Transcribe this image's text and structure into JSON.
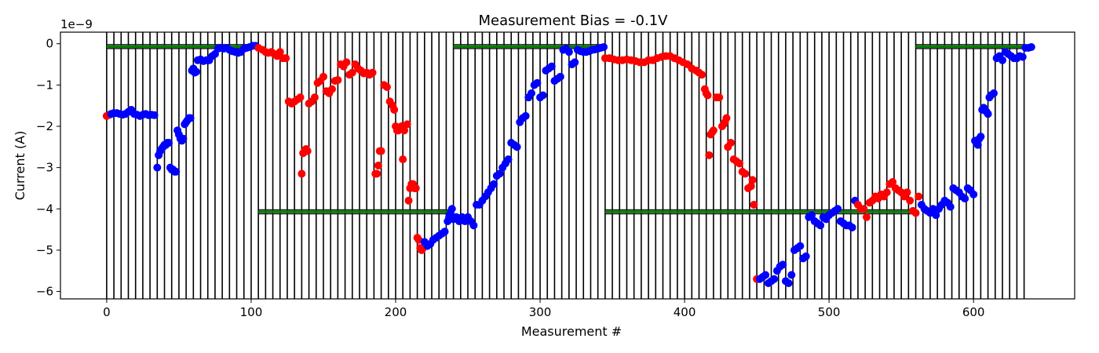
{
  "chart_data": {
    "type": "scatter",
    "title": "Measurement Bias = -0.1V",
    "xlabel": "Measurement #",
    "ylabel": "Current (A)",
    "offset_text": "1e−9",
    "xlim": [
      -32,
      670
    ],
    "ylim": [
      -6.18,
      0.28
    ],
    "xticks": [
      0,
      100,
      200,
      300,
      400,
      500,
      600
    ],
    "xtick_labels": [
      "0",
      "100",
      "200",
      "300",
      "400",
      "500",
      "600"
    ],
    "yticks": [
      0,
      -1,
      -2,
      -3,
      -4,
      -5,
      -6
    ],
    "ytick_labels": [
      "0",
      "−1",
      "−2",
      "−3",
      "−4",
      "−5",
      "−6"
    ],
    "grid": false,
    "colors": {
      "blue": "#0000ff",
      "red": "#ff0000",
      "vline": "#000000",
      "hline_green": "#008000",
      "hline_dark": "#1a1a1a"
    },
    "vlines": {
      "start": 0,
      "end": 635,
      "step": 5
    },
    "hbands": [
      {
        "x": [
          0,
          105
        ],
        "y": -0.07
      },
      {
        "x": [
          240,
          345
        ],
        "y": -0.07
      },
      {
        "x": [
          560,
          635
        ],
        "y": -0.07
      },
      {
        "x": [
          105,
          240
        ],
        "y": -4.07
      },
      {
        "x": [
          345,
          560
        ],
        "y": -4.07
      }
    ],
    "series": [
      {
        "color": "red",
        "x": [
          0,
          2
        ],
        "y": [
          -1.75,
          -1.72
        ]
      },
      {
        "color": "blue",
        "x": [
          3,
          5,
          7,
          9,
          11,
          13,
          15,
          17,
          19,
          21,
          23,
          25,
          27,
          29,
          31,
          33,
          35,
          36,
          37,
          38,
          39,
          40,
          41,
          42,
          43,
          44,
          45,
          46,
          47,
          48,
          49,
          50,
          51,
          52,
          53,
          54,
          55,
          56,
          57,
          58,
          59,
          60,
          61,
          62,
          63,
          65,
          67,
          69,
          71,
          73,
          75,
          77,
          79,
          81,
          83,
          85,
          87,
          89,
          91,
          93,
          95,
          97,
          99,
          101,
          103
        ],
        "y": [
          -1.7,
          -1.68,
          -1.68,
          -1.7,
          -1.72,
          -1.7,
          -1.65,
          -1.6,
          -1.7,
          -1.72,
          -1.75,
          -1.72,
          -1.7,
          -1.73,
          -1.72,
          -1.73,
          -3.0,
          -2.7,
          -2.6,
          -2.55,
          -2.5,
          -2.45,
          -2.45,
          -2.4,
          -2.4,
          -3.0,
          -3.05,
          -3.05,
          -3.1,
          -3.1,
          -2.1,
          -2.2,
          -2.3,
          -2.35,
          -2.3,
          -1.95,
          -1.9,
          -1.85,
          -1.8,
          -1.8,
          -0.65,
          -0.6,
          -0.7,
          -0.68,
          -0.4,
          -0.38,
          -0.42,
          -0.4,
          -0.4,
          -0.3,
          -0.25,
          -0.12,
          -0.1,
          -0.12,
          -0.1,
          -0.15,
          -0.18,
          -0.2,
          -0.22,
          -0.2,
          -0.12,
          -0.1,
          -0.08,
          -0.05,
          -0.05
        ]
      },
      {
        "color": "red",
        "x": [
          105,
          108,
          110,
          112,
          114,
          116,
          118,
          120,
          122,
          124,
          126,
          128,
          130,
          132,
          134,
          135,
          136,
          137,
          138,
          139,
          140,
          142,
          144,
          146,
          148,
          150,
          152,
          154,
          156,
          158,
          160,
          162,
          164,
          166,
          168,
          170,
          172,
          174,
          176,
          178,
          180,
          182,
          184,
          186,
          187,
          188,
          189,
          190,
          192,
          194,
          196,
          198,
          199,
          200,
          201,
          202,
          203,
          204,
          205,
          206,
          208,
          209,
          210,
          211,
          212,
          213,
          214,
          215,
          216,
          217,
          218,
          219
        ],
        "y": [
          -0.1,
          -0.15,
          -0.2,
          -0.22,
          -0.2,
          -0.25,
          -0.3,
          -0.2,
          -0.35,
          -0.35,
          -1.4,
          -1.45,
          -1.4,
          -1.35,
          -1.3,
          -3.15,
          -2.65,
          -2.6,
          -2.55,
          -2.6,
          -1.45,
          -1.4,
          -1.3,
          -0.95,
          -0.9,
          -0.8,
          -1.15,
          -1.2,
          -1.1,
          -0.9,
          -0.88,
          -0.5,
          -0.55,
          -0.45,
          -0.75,
          -0.7,
          -0.5,
          -0.6,
          -0.65,
          -0.72,
          -0.7,
          -0.75,
          -0.7,
          -3.15,
          -3.15,
          -2.95,
          -2.6,
          -2.6,
          -1.0,
          -1.05,
          -1.4,
          -1.5,
          -1.6,
          -2.0,
          -2.1,
          -2.1,
          -2.05,
          -2.0,
          -2.8,
          -2.1,
          -1.95,
          -3.8,
          -3.5,
          -3.4,
          -3.4,
          -3.5,
          -3.5,
          -4.7,
          -4.75,
          -4.95,
          -5.0,
          -4.95
        ]
      },
      {
        "color": "blue",
        "x": [
          220,
          222,
          224,
          226,
          228,
          230,
          232,
          234,
          236,
          237,
          238,
          239,
          240,
          242,
          244,
          246,
          248,
          250,
          252,
          254,
          256,
          258,
          260,
          262,
          264,
          266,
          268,
          270,
          272,
          274,
          276,
          278,
          280,
          282,
          284,
          286,
          288,
          290,
          292,
          294,
          296,
          298,
          300,
          302,
          304,
          306,
          308,
          310,
          312,
          314,
          316,
          318,
          320,
          322,
          324,
          326,
          328,
          330,
          332,
          334,
          336,
          338,
          340,
          342,
          344
        ],
        "y": [
          -4.8,
          -4.9,
          -4.85,
          -4.75,
          -4.7,
          -4.65,
          -4.6,
          -4.55,
          -4.3,
          -4.2,
          -4.1,
          -4.0,
          -4.25,
          -4.2,
          -4.3,
          -4.2,
          -4.3,
          -4.2,
          -4.3,
          -4.4,
          -3.9,
          -3.9,
          -3.8,
          -3.7,
          -3.6,
          -3.5,
          -3.4,
          -3.2,
          -3.15,
          -3.0,
          -2.9,
          -2.8,
          -2.4,
          -2.45,
          -2.5,
          -1.9,
          -1.8,
          -1.75,
          -1.3,
          -1.2,
          -1.0,
          -0.95,
          -1.3,
          -1.25,
          -0.65,
          -0.6,
          -0.55,
          -0.9,
          -0.85,
          -0.8,
          -0.15,
          -0.12,
          -0.2,
          -0.5,
          -0.45,
          -0.15,
          -0.18,
          -0.2,
          -0.2,
          -0.18,
          -0.15,
          -0.14,
          -0.12,
          -0.1,
          -0.08
        ]
      },
      {
        "color": "red",
        "x": [
          345,
          348,
          351,
          354,
          357,
          360,
          363,
          366,
          369,
          372,
          375,
          378,
          381,
          384,
          387,
          390,
          393,
          396,
          399,
          402,
          405,
          408,
          410,
          412,
          414,
          415,
          416,
          417,
          418,
          419,
          420,
          422,
          424,
          426,
          427,
          428,
          429,
          430,
          432,
          434,
          436,
          438,
          440,
          442,
          444,
          446,
          447,
          448,
          450
        ],
        "y": [
          -0.35,
          -0.35,
          -0.38,
          -0.4,
          -0.4,
          -0.38,
          -0.4,
          -0.42,
          -0.45,
          -0.45,
          -0.4,
          -0.4,
          -0.35,
          -0.32,
          -0.3,
          -0.3,
          -0.35,
          -0.4,
          -0.45,
          -0.5,
          -0.6,
          -0.65,
          -0.7,
          -0.75,
          -1.1,
          -1.2,
          -1.25,
          -2.7,
          -2.2,
          -2.15,
          -2.1,
          -1.3,
          -1.3,
          -2.0,
          -1.95,
          -1.9,
          -1.8,
          -2.5,
          -2.4,
          -2.8,
          -2.85,
          -2.9,
          -3.1,
          -3.15,
          -3.5,
          -3.45,
          -3.3,
          -3.9,
          -5.7
        ]
      },
      {
        "color": "blue",
        "x": [
          452,
          454,
          456,
          458,
          460,
          462,
          464,
          466,
          468,
          470,
          472,
          474,
          476,
          478,
          480,
          482,
          484,
          486,
          488,
          490,
          492,
          494,
          496,
          498,
          500,
          502,
          504,
          506,
          508,
          510,
          512,
          514,
          516,
          518
        ],
        "y": [
          -5.7,
          -5.65,
          -5.6,
          -5.8,
          -5.75,
          -5.7,
          -5.5,
          -5.4,
          -5.35,
          -5.75,
          -5.8,
          -5.6,
          -5.0,
          -4.95,
          -4.9,
          -5.2,
          -5.15,
          -4.2,
          -4.15,
          -4.3,
          -4.35,
          -4.4,
          -4.2,
          -4.25,
          -4.15,
          -4.1,
          -4.05,
          -4.0,
          -4.3,
          -4.35,
          -4.4,
          -4.4,
          -4.45,
          -3.8
        ]
      },
      {
        "color": "red",
        "x": [
          520,
          522,
          524,
          526,
          528,
          530,
          532,
          534,
          536,
          538,
          540,
          542,
          544,
          546,
          548,
          550,
          552,
          554,
          556,
          558,
          560,
          562
        ],
        "y": [
          -3.9,
          -4.0,
          -4.0,
          -4.2,
          -3.85,
          -3.8,
          -3.7,
          -3.75,
          -3.65,
          -3.7,
          -3.6,
          -3.4,
          -3.35,
          -3.5,
          -3.55,
          -3.6,
          -3.7,
          -3.6,
          -3.8,
          -4.05,
          -4.1,
          -3.7
        ]
      },
      {
        "color": "blue",
        "x": [
          564,
          566,
          568,
          570,
          572,
          574,
          576,
          578,
          580,
          582,
          584,
          586,
          588,
          590,
          592,
          594,
          596,
          598,
          600,
          601,
          602,
          603,
          604,
          605,
          606,
          607,
          608,
          609,
          610,
          611,
          612,
          614,
          616,
          618,
          620,
          622,
          624,
          626,
          628,
          630,
          632,
          634,
          636,
          638,
          640
        ],
        "y": [
          -3.9,
          -4.0,
          -4.05,
          -4.1,
          -4.0,
          -4.15,
          -4.0,
          -3.9,
          -3.8,
          -3.85,
          -3.95,
          -3.5,
          -3.55,
          -3.6,
          -3.7,
          -3.75,
          -3.5,
          -3.55,
          -3.65,
          -2.35,
          -2.4,
          -2.45,
          -2.3,
          -2.25,
          -1.6,
          -1.55,
          -1.6,
          -1.65,
          -1.7,
          -1.3,
          -1.25,
          -1.2,
          -0.35,
          -0.3,
          -0.4,
          -0.2,
          -0.25,
          -0.3,
          -0.35,
          -0.35,
          -0.3,
          -0.32,
          -0.1,
          -0.1,
          -0.08
        ]
      }
    ]
  }
}
